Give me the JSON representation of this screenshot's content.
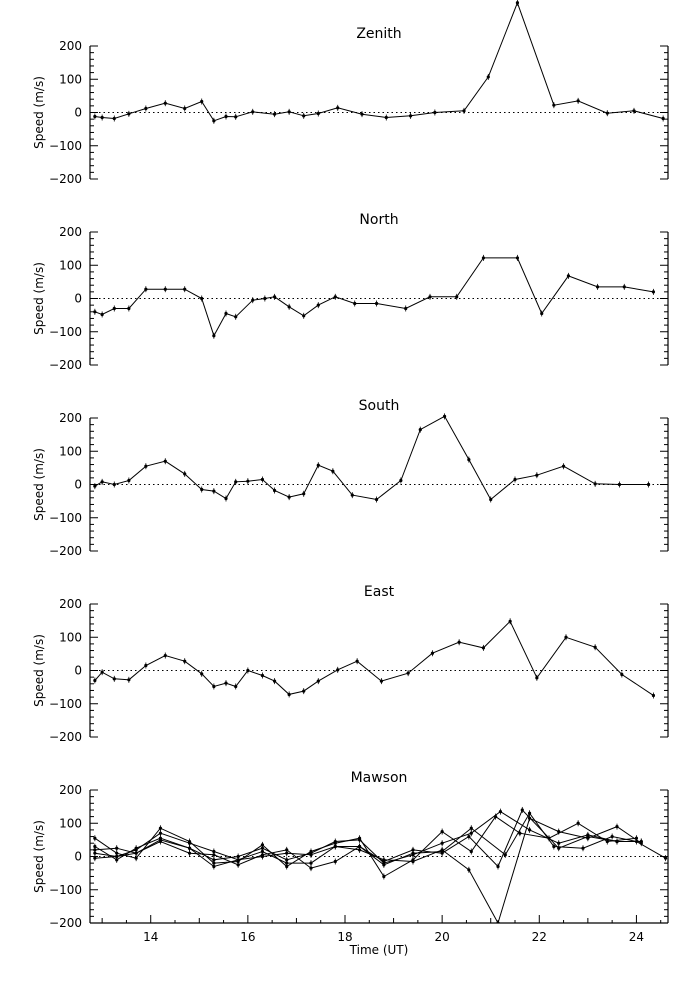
{
  "chart_data": [
    {
      "type": "line",
      "title": "Zenith",
      "ylabel": "Speed (m/s)",
      "xlim": [
        12.75,
        24.65
      ],
      "ylim": [
        -200,
        200
      ],
      "yticks": [
        "200",
        "100",
        "0",
        "−100",
        "−200"
      ],
      "series": [
        {
          "x": [
            12.85,
            13.0,
            13.25,
            13.55,
            13.9,
            14.3,
            14.7,
            15.05,
            15.3,
            15.55,
            15.75,
            16.1,
            16.55,
            16.85,
            17.15,
            17.45,
            17.85,
            18.35,
            18.85,
            19.35,
            19.85,
            20.45,
            20.95,
            21.55,
            22.3,
            22.8,
            23.4,
            23.95,
            24.55
          ],
          "y": [
            -12,
            -15,
            -18,
            -4,
            12,
            28,
            12,
            33,
            -25,
            -12,
            -13,
            2,
            -5,
            2,
            -10,
            -3,
            14,
            -5,
            -15,
            -10,
            0,
            5,
            107,
            330,
            22,
            35,
            -2,
            5,
            -18
          ]
        }
      ]
    },
    {
      "type": "line",
      "title": "North",
      "ylabel": "Speed (m/s)",
      "xlim": [
        12.75,
        24.65
      ],
      "ylim": [
        -200,
        200
      ],
      "yticks": [
        "200",
        "100",
        "0",
        "−100",
        "−200"
      ],
      "series": [
        {
          "x": [
            12.85,
            13.0,
            13.25,
            13.55,
            13.9,
            14.3,
            14.7,
            15.05,
            15.3,
            15.55,
            15.75,
            16.1,
            16.35,
            16.55,
            16.85,
            17.15,
            17.45,
            17.8,
            18.2,
            18.65,
            19.25,
            19.75,
            20.3,
            20.85,
            21.55,
            22.05,
            22.6,
            23.2,
            23.75,
            24.35
          ],
          "y": [
            -40,
            -48,
            -30,
            -30,
            28,
            28,
            28,
            0,
            -112,
            -45,
            -55,
            -5,
            0,
            5,
            -25,
            -52,
            -20,
            5,
            -15,
            -15,
            -30,
            5,
            5,
            122,
            122,
            -45,
            68,
            35,
            35,
            20
          ]
        }
      ]
    },
    {
      "type": "line",
      "title": "South",
      "ylabel": "Speed (m/s)",
      "xlim": [
        12.75,
        24.65
      ],
      "ylim": [
        -200,
        200
      ],
      "yticks": [
        "200",
        "100",
        "0",
        "−100",
        "−200"
      ],
      "series": [
        {
          "x": [
            12.85,
            13.0,
            13.25,
            13.55,
            13.9,
            14.3,
            14.7,
            15.05,
            15.3,
            15.55,
            15.75,
            16.0,
            16.3,
            16.55,
            16.85,
            17.15,
            17.45,
            17.75,
            18.15,
            18.65,
            19.15,
            19.55,
            20.05,
            20.55,
            21.0,
            21.5,
            21.95,
            22.5,
            23.15,
            23.65,
            24.25
          ],
          "y": [
            -5,
            8,
            0,
            12,
            55,
            70,
            32,
            -15,
            -20,
            -42,
            8,
            10,
            15,
            -18,
            -38,
            -28,
            58,
            40,
            -32,
            -45,
            12,
            165,
            205,
            75,
            -45,
            15,
            28,
            55,
            2,
            0,
            0
          ]
        }
      ]
    },
    {
      "type": "line",
      "title": "East",
      "ylabel": "Speed (m/s)",
      "xlim": [
        12.75,
        24.65
      ],
      "ylim": [
        -200,
        200
      ],
      "yticks": [
        "200",
        "100",
        "0",
        "−100",
        "−200"
      ],
      "series": [
        {
          "x": [
            12.85,
            13.0,
            13.25,
            13.55,
            13.9,
            14.3,
            14.7,
            15.05,
            15.3,
            15.55,
            15.75,
            16.0,
            16.3,
            16.55,
            16.85,
            17.15,
            17.45,
            17.85,
            18.25,
            18.75,
            19.3,
            19.8,
            20.35,
            20.85,
            21.4,
            21.95,
            22.55,
            23.15,
            23.7,
            24.35
          ],
          "y": [
            -30,
            -5,
            -25,
            -28,
            15,
            45,
            28,
            -10,
            -48,
            -38,
            -48,
            0,
            -15,
            -32,
            -72,
            -62,
            -32,
            2,
            28,
            -32,
            -8,
            52,
            85,
            68,
            148,
            -22,
            100,
            70,
            -12,
            -75
          ]
        }
      ]
    },
    {
      "type": "line",
      "title": "Mawson",
      "ylabel": "Speed (m/s)",
      "xlabel": "Time (UT)",
      "xlim": [
        12.75,
        24.65
      ],
      "ylim": [
        -200,
        200
      ],
      "yticks": [
        "200",
        "100",
        "0",
        "−100",
        "−200"
      ],
      "xticks": [
        "14",
        "16",
        "18",
        "20",
        "22",
        "24"
      ],
      "series": [
        {
          "x": [
            12.85,
            13.3,
            13.7,
            14.2,
            14.8,
            15.3,
            15.8,
            16.3,
            16.8,
            17.3,
            17.8,
            18.3,
            18.8,
            19.4,
            20.0,
            20.6,
            21.1,
            21.6,
            22.2,
            22.8,
            23.4,
            24.0
          ],
          "y": [
            55,
            10,
            -5,
            85,
            45,
            -20,
            -15,
            35,
            -30,
            15,
            40,
            55,
            -60,
            -10,
            75,
            15,
            120,
            70,
            55,
            100,
            45,
            55
          ]
        },
        {
          "x": [
            12.85,
            13.3,
            13.7,
            14.2,
            14.8,
            15.3,
            15.8,
            16.3,
            16.8,
            17.3,
            17.8,
            18.3,
            18.8,
            19.4,
            20.0,
            20.55,
            21.15,
            21.8,
            22.4,
            23.0,
            23.6,
            24.1
          ],
          "y": [
            -5,
            0,
            10,
            50,
            25,
            -30,
            -10,
            15,
            -20,
            -20,
            30,
            20,
            -10,
            -15,
            20,
            -40,
            -200,
            115,
            75,
            55,
            90,
            40
          ]
        },
        {
          "x": [
            12.85,
            13.3,
            13.7,
            14.2,
            14.8,
            15.3,
            15.8,
            16.3,
            16.8,
            17.3,
            17.8,
            18.3,
            18.8,
            19.4,
            20.0,
            20.55,
            21.15,
            21.65,
            22.4,
            23.0,
            23.6,
            24.1
          ],
          "y": [
            20,
            25,
            10,
            45,
            10,
            5,
            -25,
            5,
            20,
            -35,
            -15,
            30,
            -15,
            20,
            10,
            60,
            -30,
            140,
            25,
            60,
            45,
            45
          ]
        },
        {
          "x": [
            12.85,
            13.3,
            13.7,
            14.2,
            14.8,
            15.3,
            15.8,
            16.3,
            16.8,
            17.3,
            17.8,
            18.3,
            18.8,
            19.4,
            20.0,
            20.6,
            21.3,
            21.8,
            22.3,
            22.9,
            23.5,
            24.0,
            24.6
          ],
          "y": [
            10,
            0,
            20,
            70,
            40,
            15,
            -10,
            0,
            10,
            5,
            30,
            30,
            -25,
            10,
            15,
            85,
            5,
            130,
            30,
            25,
            60,
            45,
            -5
          ]
        },
        {
          "x": [
            12.85,
            13.3,
            13.7,
            14.2,
            14.8,
            15.3,
            15.8,
            16.3,
            16.8,
            17.3,
            17.8,
            18.3,
            18.8,
            19.4,
            20.0,
            20.6,
            21.2,
            21.8,
            22.4,
            23.0,
            23.6,
            24.1
          ],
          "y": [
            30,
            -10,
            25,
            55,
            25,
            -10,
            0,
            25,
            -10,
            10,
            45,
            50,
            -20,
            5,
            40,
            70,
            135,
            80,
            40,
            65,
            45,
            45
          ]
        }
      ]
    }
  ]
}
